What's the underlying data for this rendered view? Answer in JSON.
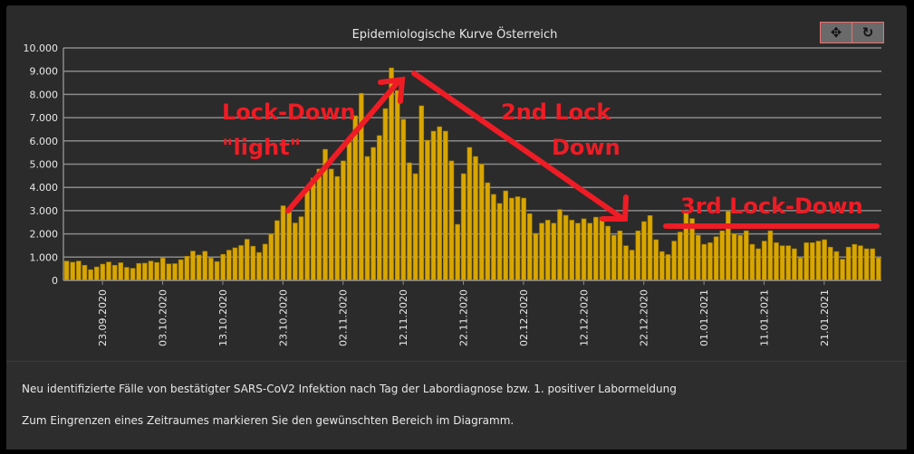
{
  "chart_data": {
    "type": "bar",
    "title": "Epidemiologische Kurve Österreich",
    "xlabel": "",
    "ylabel": "",
    "start_date": "17.09.2020",
    "ylim": [
      0,
      10000
    ],
    "y_ticks": [
      "0",
      "1.000",
      "2.000",
      "3.000",
      "4.000",
      "5.000",
      "6.000",
      "7.000",
      "8.000",
      "9.000",
      "10.000"
    ],
    "x_ticks": [
      {
        "label": "23.09.2020",
        "day_index": 6
      },
      {
        "label": "03.10.2020",
        "day_index": 16
      },
      {
        "label": "13.10.2020",
        "day_index": 26
      },
      {
        "label": "23.10.2020",
        "day_index": 36
      },
      {
        "label": "02.11.2020",
        "day_index": 46
      },
      {
        "label": "12.11.2020",
        "day_index": 56
      },
      {
        "label": "22.11.2020",
        "day_index": 66
      },
      {
        "label": "02.12.2020",
        "day_index": 76
      },
      {
        "label": "12.12.2020",
        "day_index": 86
      },
      {
        "label": "22.12.2020",
        "day_index": 96
      },
      {
        "label": "01.01.2021",
        "day_index": 106
      },
      {
        "label": "11.01.2021",
        "day_index": 116
      },
      {
        "label": "21.01.2021",
        "day_index": 126
      }
    ],
    "bar_color": "#d9a600",
    "series": [
      {
        "name": "Neu identifizierte Fälle",
        "values": [
          830,
          780,
          830,
          650,
          460,
          580,
          700,
          790,
          650,
          760,
          560,
          520,
          730,
          740,
          830,
          770,
          960,
          710,
          720,
          890,
          1040,
          1260,
          1090,
          1250,
          960,
          810,
          1120,
          1300,
          1400,
          1500,
          1770,
          1470,
          1200,
          1560,
          1990,
          2570,
          3210,
          2960,
          2470,
          2740,
          3880,
          4400,
          4790,
          5640,
          4790,
          4470,
          5140,
          5950,
          7080,
          8050,
          5330,
          5720,
          6230,
          7390,
          9140,
          8170,
          6930,
          5060,
          4590,
          7510,
          6030,
          6420,
          6610,
          6420,
          5140,
          2410,
          4590,
          5720,
          5330,
          5000,
          4200,
          3700,
          3310,
          3850,
          3540,
          3600,
          3540,
          2870,
          2020,
          2460,
          2590,
          2460,
          3050,
          2800,
          2590,
          2460,
          2650,
          2460,
          2720,
          2720,
          2330,
          1940,
          2130,
          1490,
          1300,
          2130,
          2530,
          2790,
          1750,
          1240,
          1110,
          1690,
          2080,
          2980,
          2660,
          1940,
          1550,
          1620,
          1880,
          2130,
          2980,
          2010,
          1940,
          2130,
          1550,
          1360,
          1690,
          2130,
          1620,
          1490,
          1490,
          1360,
          970,
          1620,
          1620,
          1690,
          1750,
          1430,
          1240,
          910,
          1430,
          1550,
          1490,
          1360,
          1360,
          970
        ]
      }
    ],
    "annotations": {
      "color": "#ee1c25",
      "lockdown_light_1": "Lock-Down",
      "lockdown_light_2": "\"light\"",
      "lockdown2_1": "2nd Lock",
      "lockdown2_2": "Down",
      "lockdown3": "3rd Lock-Down"
    }
  },
  "toolbar": {
    "pan_icon": "✥",
    "reset_icon": "↻"
  },
  "caption": {
    "line1": "Neu identifizierte Fälle von bestätigter SARS-CoV2 Infektion nach Tag der Labordiagnose bzw. 1. positiver Labormeldung",
    "line2": "Zum Eingrenzen eines Zeitraumes markieren Sie den gewünschten Bereich im Diagramm."
  }
}
